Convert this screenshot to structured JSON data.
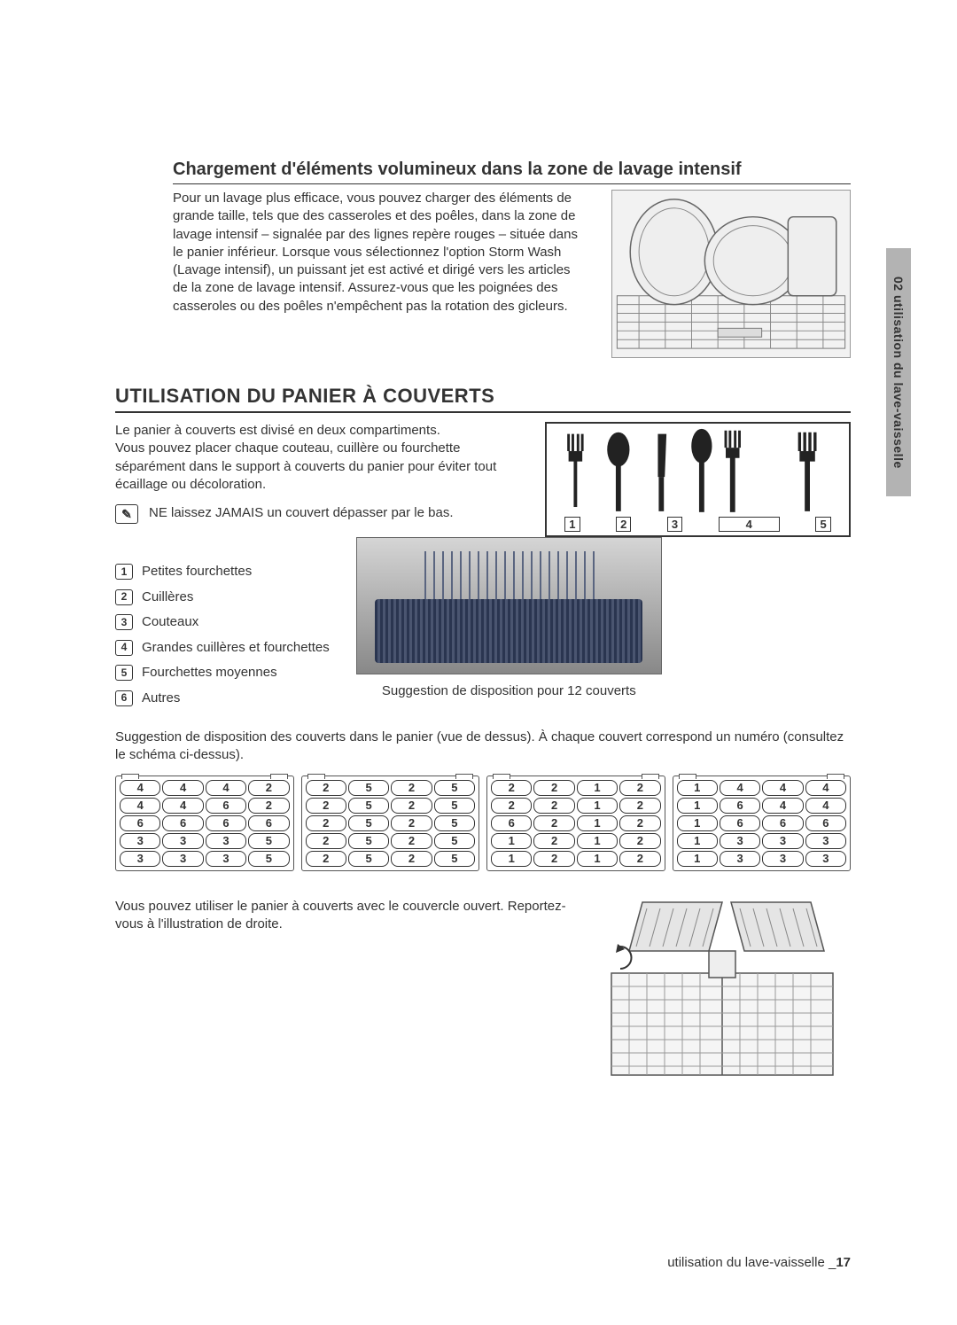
{
  "sideTab": "02 utilisation du lave-vaisselle",
  "section1": {
    "title": "Chargement d'éléments volumineux dans la zone de lavage intensif",
    "text": "Pour un lavage plus efficace, vous pouvez charger des éléments de grande taille, tels que des casseroles et des poêles, dans la zone de lavage intensif – signalée par des lignes repère rouges – située dans le panier inférieur. Lorsque vous sélectionnez l'option Storm Wash (Lavage intensif), un puissant jet est activé et dirigé vers les articles de la zone de lavage intensif. Assurez-vous que les poignées des casseroles ou des poêles n'empêchent pas la rotation des gicleurs."
  },
  "section2": {
    "title": "UTILISATION DU PANIER À COUVERTS",
    "intro1": "Le panier à couverts est divisé en deux compartiments.",
    "intro2": "Vous pouvez placer chaque couteau, cuillère ou fourchette séparément dans le support à couverts du panier pour éviter tout écaillage ou décoloration.",
    "note": "NE laissez JAMAIS un couvert dépasser par le bas."
  },
  "slotLabels": [
    "1",
    "2",
    "3",
    "4",
    "5"
  ],
  "legend": [
    {
      "n": "1",
      "label": "Petites fourchettes"
    },
    {
      "n": "2",
      "label": "Cuillères"
    },
    {
      "n": "3",
      "label": "Couteaux"
    },
    {
      "n": "4",
      "label": "Grandes cuillères et fourchettes"
    },
    {
      "n": "5",
      "label": "Fourchettes moyennes"
    },
    {
      "n": "6",
      "label": "Autres"
    }
  ],
  "basketCaption": "Suggestion de disposition pour 12 couverts",
  "midPara": "Suggestion de disposition des couverts dans le panier (vue de dessus). À chaque couvert correspond un numéro (consultez le schéma ci-dessus).",
  "layoutSections": [
    [
      [
        "4",
        "4",
        "4",
        "2"
      ],
      [
        "4",
        "4",
        "6",
        "2"
      ],
      [
        "6",
        "6",
        "6",
        "6"
      ],
      [
        "3",
        "3",
        "3",
        "5"
      ],
      [
        "3",
        "3",
        "3",
        "5"
      ]
    ],
    [
      [
        "2",
        "5",
        "2",
        "5"
      ],
      [
        "2",
        "5",
        "2",
        "5"
      ],
      [
        "2",
        "5",
        "2",
        "5"
      ],
      [
        "2",
        "5",
        "2",
        "5"
      ],
      [
        "2",
        "5",
        "2",
        "5"
      ]
    ],
    [
      [
        "2",
        "2",
        "1",
        "2"
      ],
      [
        "2",
        "2",
        "1",
        "2"
      ],
      [
        "6",
        "2",
        "1",
        "2"
      ],
      [
        "1",
        "2",
        "1",
        "2"
      ],
      [
        "1",
        "2",
        "1",
        "2"
      ]
    ],
    [
      [
        "1",
        "4",
        "4",
        "4"
      ],
      [
        "1",
        "6",
        "4",
        "4"
      ],
      [
        "1",
        "6",
        "6",
        "6"
      ],
      [
        "1",
        "3",
        "3",
        "3"
      ],
      [
        "1",
        "3",
        "3",
        "3"
      ]
    ]
  ],
  "bottomText": "Vous pouvez utiliser le panier à couverts avec le couvercle ouvert. Reportez-vous à l'illustration de droite.",
  "footer": {
    "text": "utilisation du lave-vaisselle _",
    "page": "17"
  }
}
